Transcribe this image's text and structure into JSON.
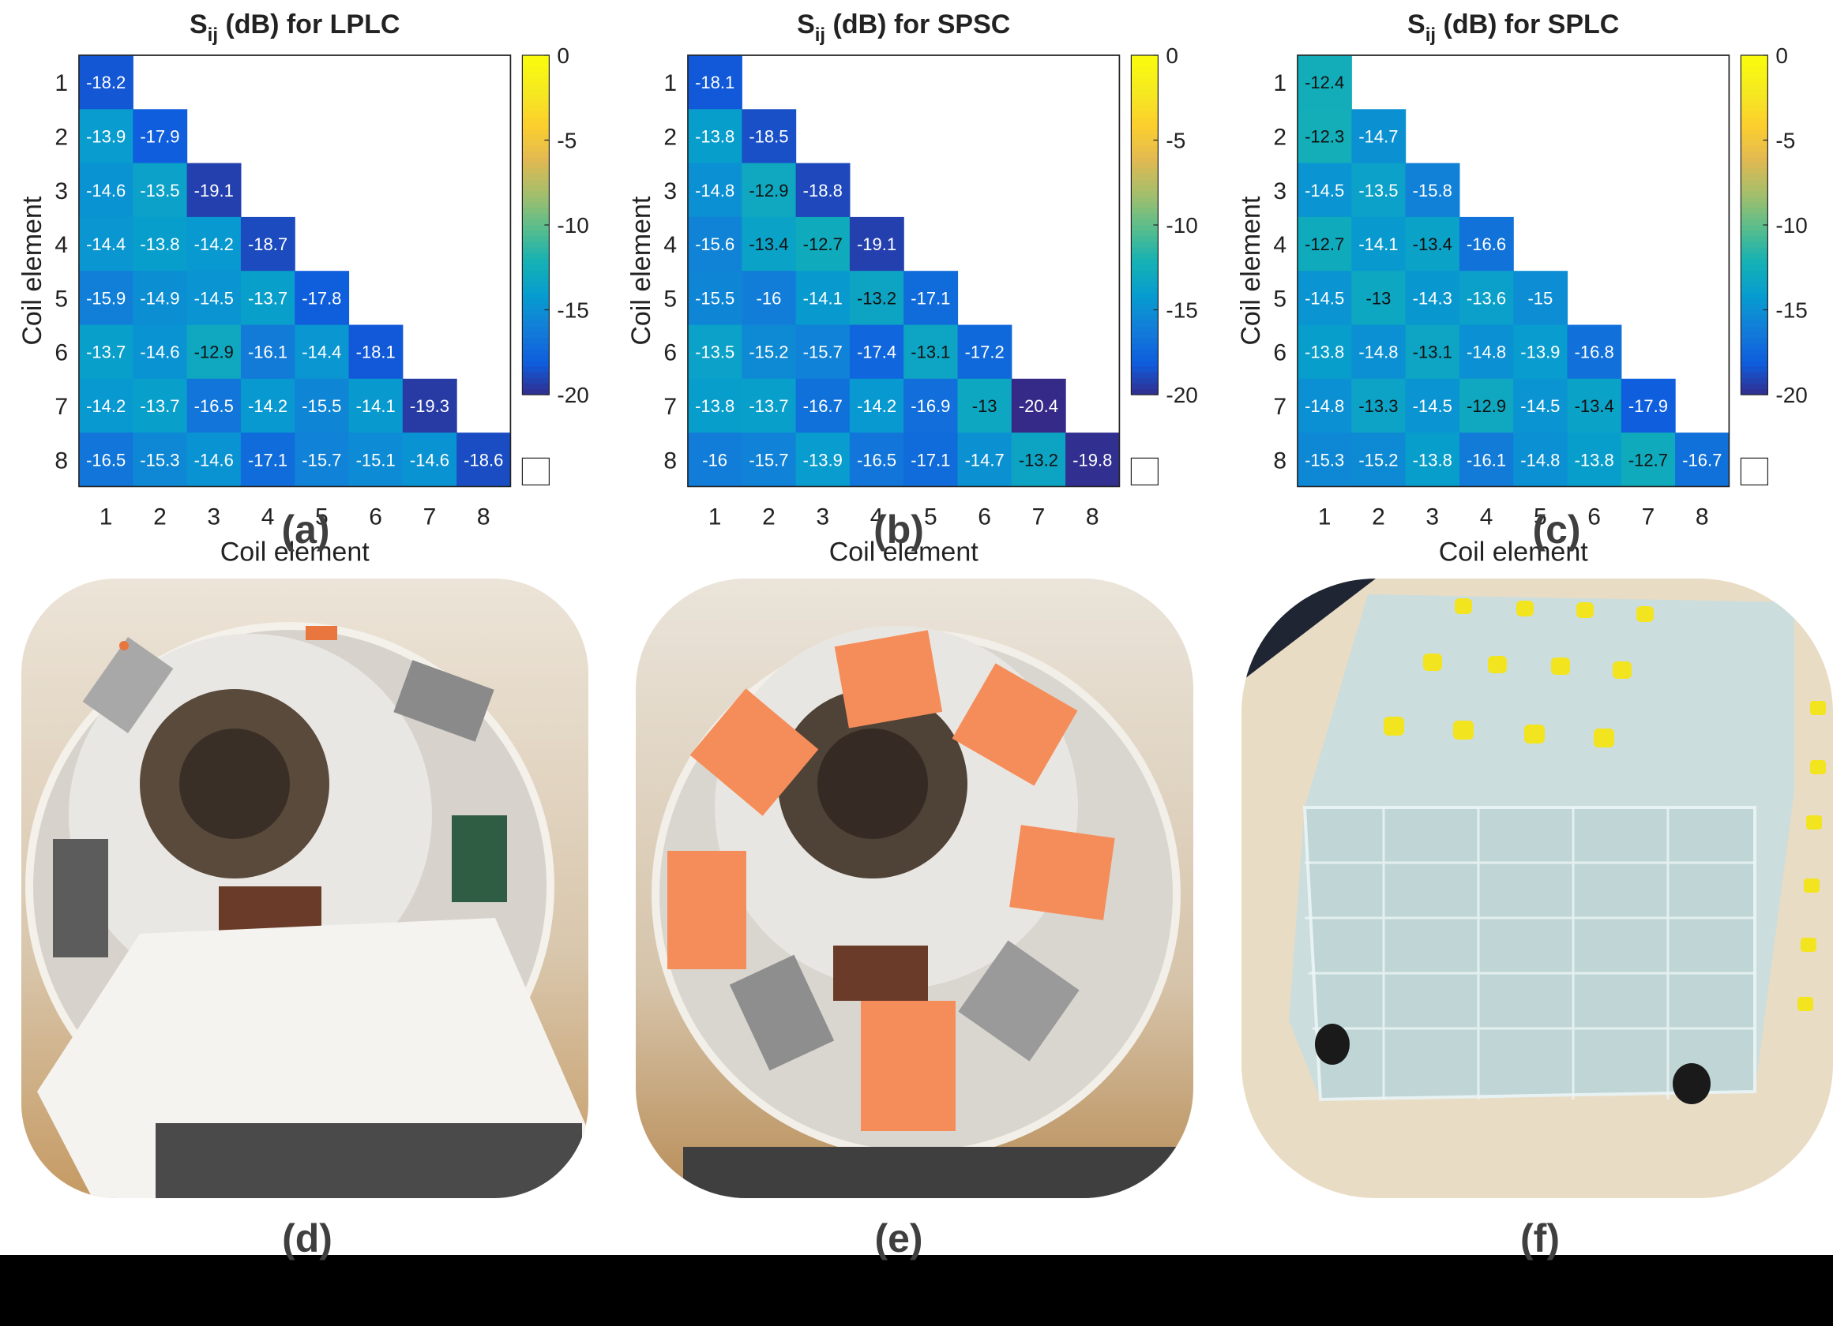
{
  "charts": [
    {
      "key": "a",
      "title_main": "S",
      "title_sub": "ij",
      "title_rest": " (dB) for LPLC",
      "caption": "(a)"
    },
    {
      "key": "b",
      "title_main": "S",
      "title_sub": "ij",
      "title_rest": " (dB) for SPSC",
      "caption": "(b)"
    },
    {
      "key": "c",
      "title_main": "S",
      "title_sub": "ij",
      "title_rest": " (dB) for SPLC",
      "caption": "(c)"
    }
  ],
  "photos": [
    {
      "key": "d",
      "caption": "(d)",
      "subject": "coil array with LPLC elements inside MRI scanner bore"
    },
    {
      "key": "e",
      "caption": "(e)",
      "subject": "coil array with orange SPSC housings inside MRI scanner bore"
    },
    {
      "key": "f",
      "caption": "(f)",
      "subject": "acrylic water phantom with yellow capped tubes"
    }
  ],
  "chart_data": [
    {
      "type": "heatmap",
      "title": "Sij (dB) for LPLC",
      "xlabel": "Coil element",
      "ylabel": "Coil element",
      "x": [
        1,
        2,
        3,
        4,
        5,
        6,
        7,
        8
      ],
      "y": [
        1,
        2,
        3,
        4,
        5,
        6,
        7,
        8
      ],
      "colormap": "parula",
      "clim": [
        -20,
        0
      ],
      "colorbar_ticks": [
        0,
        -5,
        -10,
        -15,
        -20
      ],
      "values": [
        [
          -18.2
        ],
        [
          -13.9,
          -17.9
        ],
        [
          -14.6,
          -13.5,
          -19.1
        ],
        [
          -14.4,
          -13.8,
          -14.2,
          -18.7
        ],
        [
          -15.9,
          -14.9,
          -14.5,
          -13.7,
          -17.8
        ],
        [
          -13.7,
          -14.6,
          -12.9,
          -16.1,
          -14.4,
          -18.1
        ],
        [
          -14.2,
          -13.7,
          -16.5,
          -14.2,
          -15.5,
          -14.1,
          -19.3
        ],
        [
          -16.5,
          -15.3,
          -14.6,
          -17.1,
          -15.7,
          -15.1,
          -14.6,
          -18.6
        ]
      ]
    },
    {
      "type": "heatmap",
      "title": "Sij (dB) for SPSC",
      "xlabel": "Coil element",
      "ylabel": "Coil element",
      "x": [
        1,
        2,
        3,
        4,
        5,
        6,
        7,
        8
      ],
      "y": [
        1,
        2,
        3,
        4,
        5,
        6,
        7,
        8
      ],
      "colormap": "parula",
      "clim": [
        -20,
        0
      ],
      "colorbar_ticks": [
        0,
        -5,
        -10,
        -15,
        -20
      ],
      "values": [
        [
          -18.1
        ],
        [
          -13.8,
          -18.5
        ],
        [
          -14.8,
          -12.9,
          -18.8
        ],
        [
          -15.6,
          -13.4,
          -12.7,
          -19.1
        ],
        [
          -15.5,
          -16,
          -14.1,
          -13.2,
          -17.1
        ],
        [
          -13.5,
          -15.2,
          -15.7,
          -17.4,
          -13.1,
          -17.2
        ],
        [
          -13.8,
          -13.7,
          -16.7,
          -14.2,
          -16.9,
          -13,
          -20.4
        ],
        [
          -16,
          -15.7,
          -13.9,
          -16.5,
          -17.1,
          -14.7,
          -13.2,
          -19.8
        ]
      ]
    },
    {
      "type": "heatmap",
      "title": "Sij (dB) for SPLC",
      "xlabel": "Coil element",
      "ylabel": "Coil element",
      "x": [
        1,
        2,
        3,
        4,
        5,
        6,
        7,
        8
      ],
      "y": [
        1,
        2,
        3,
        4,
        5,
        6,
        7,
        8
      ],
      "colormap": "parula",
      "clim": [
        -20,
        0
      ],
      "colorbar_ticks": [
        0,
        -5,
        -10,
        -15,
        -20
      ],
      "values": [
        [
          -12.4
        ],
        [
          -12.3,
          -14.7
        ],
        [
          -14.5,
          -13.5,
          -15.8
        ],
        [
          -12.7,
          -14.1,
          -13.4,
          -16.6
        ],
        [
          -14.5,
          -13,
          -14.3,
          -13.6,
          -15
        ],
        [
          -13.8,
          -14.8,
          -13.1,
          -14.8,
          -13.9,
          -16.8
        ],
        [
          -14.8,
          -13.3,
          -14.5,
          -12.9,
          -14.5,
          -13.4,
          -17.9
        ],
        [
          -15.3,
          -15.2,
          -13.8,
          -16.1,
          -14.8,
          -13.8,
          -12.7,
          -16.7
        ]
      ]
    }
  ]
}
